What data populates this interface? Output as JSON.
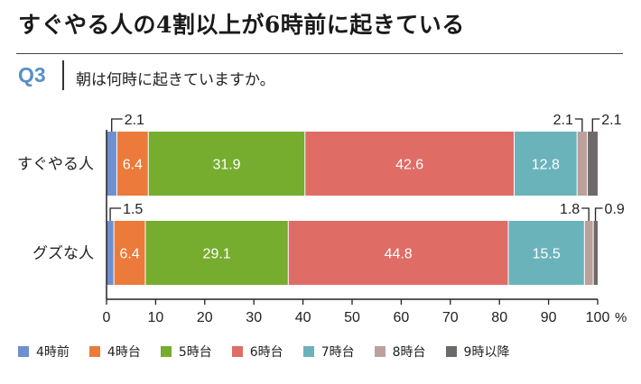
{
  "header": {
    "headline": "すぐやる人の4割以上が6時前に起きている",
    "question_number": "Q3",
    "question_text": "朝は何時に起きていますか。"
  },
  "chart_data": {
    "type": "bar",
    "orientation": "horizontal",
    "stacked": true,
    "title": "朝は何時に起きていますか。",
    "categories": [
      "すぐやる人",
      "グズな人"
    ],
    "series": [
      {
        "name": "4時前",
        "color": "#6f8fd0",
        "values": [
          2.1,
          1.5
        ]
      },
      {
        "name": "4時台",
        "color": "#ec7a3a",
        "values": [
          6.4,
          6.4
        ]
      },
      {
        "name": "5時台",
        "color": "#76ad2e",
        "values": [
          31.9,
          29.1
        ]
      },
      {
        "name": "6時台",
        "color": "#e06c66",
        "values": [
          42.6,
          44.8
        ]
      },
      {
        "name": "7時台",
        "color": "#6bb3bb",
        "values": [
          12.8,
          15.5
        ]
      },
      {
        "name": "8時台",
        "color": "#bba19b",
        "values": [
          2.1,
          1.8
        ]
      },
      {
        "name": "9時以降",
        "color": "#6e6a69",
        "values": [
          2.1,
          0.9
        ]
      }
    ],
    "xlim": [
      0,
      100
    ],
    "xticks": [
      "0",
      "10",
      "20",
      "30",
      "40",
      "50",
      "60",
      "70",
      "80",
      "90",
      "100"
    ],
    "x_unit": "%",
    "annotations": [
      {
        "bar": 0,
        "series": 0,
        "text": "2.1",
        "side": "left"
      },
      {
        "bar": 0,
        "series": 5,
        "text": "2.1",
        "side": "right"
      },
      {
        "bar": 0,
        "series": 6,
        "text": "2.1",
        "side": "right"
      },
      {
        "bar": 1,
        "series": 0,
        "text": "1.5",
        "side": "left"
      },
      {
        "bar": 1,
        "series": 5,
        "text": "1.8",
        "side": "right"
      },
      {
        "bar": 1,
        "series": 6,
        "text": "0.9",
        "side": "right"
      }
    ],
    "inside_labels": [
      {
        "bar": 0,
        "series": 1,
        "text": "6.4"
      },
      {
        "bar": 0,
        "series": 2,
        "text": "31.9"
      },
      {
        "bar": 0,
        "series": 3,
        "text": "42.6"
      },
      {
        "bar": 0,
        "series": 4,
        "text": "12.8"
      },
      {
        "bar": 1,
        "series": 1,
        "text": "6.4"
      },
      {
        "bar": 1,
        "series": 2,
        "text": "29.1"
      },
      {
        "bar": 1,
        "series": 3,
        "text": "44.8"
      },
      {
        "bar": 1,
        "series": 4,
        "text": "15.5"
      }
    ]
  }
}
